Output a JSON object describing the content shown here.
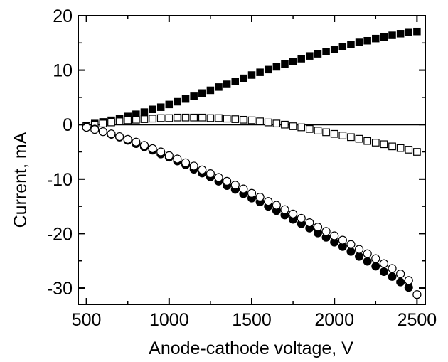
{
  "chart_data": {
    "type": "scatter",
    "title": "",
    "xlabel": "Anode-cathode voltage, V",
    "ylabel": "Current, mA",
    "xlim": [
      450,
      2550
    ],
    "ylim": [
      -33,
      20
    ],
    "xticks": [
      500,
      1000,
      1500,
      2000,
      2500
    ],
    "xtick_labels": [
      "500",
      "1000",
      "1500",
      "2000",
      "2500"
    ],
    "yticks": [
      20,
      10,
      0,
      -10,
      -20,
      -30
    ],
    "ytick_labels": [
      "20",
      "10",
      "0",
      "-10",
      "-20",
      "-30"
    ],
    "grid": false,
    "legend": null,
    "zero_line": true,
    "series": [
      {
        "marker": "filled-square",
        "color": "#000000",
        "x": [
          500,
          550,
          600,
          650,
          700,
          750,
          800,
          850,
          900,
          950,
          1000,
          1050,
          1100,
          1150,
          1200,
          1250,
          1300,
          1350,
          1400,
          1450,
          1500,
          1550,
          1600,
          1650,
          1700,
          1750,
          1800,
          1850,
          1900,
          1950,
          2000,
          2050,
          2100,
          2150,
          2200,
          2250,
          2300,
          2350,
          2400,
          2450,
          2500
        ],
        "y": [
          -0.2,
          0.2,
          0.5,
          0.8,
          1.1,
          1.5,
          1.9,
          2.3,
          2.8,
          3.2,
          3.7,
          4.2,
          4.7,
          5.2,
          5.8,
          6.3,
          6.9,
          7.4,
          7.9,
          8.5,
          9.1,
          9.6,
          10.1,
          10.6,
          11.1,
          11.6,
          12.1,
          12.6,
          13.0,
          13.4,
          13.8,
          14.3,
          14.7,
          15.1,
          15.4,
          15.8,
          16.1,
          16.4,
          16.7,
          16.9,
          17.1
        ]
      },
      {
        "marker": "open-square",
        "color": "#000000",
        "x": [
          500,
          550,
          600,
          650,
          700,
          750,
          800,
          850,
          900,
          950,
          1000,
          1050,
          1100,
          1150,
          1200,
          1250,
          1300,
          1350,
          1400,
          1450,
          1500,
          1550,
          1600,
          1650,
          1700,
          1750,
          1800,
          1850,
          1900,
          1950,
          2000,
          2050,
          2100,
          2150,
          2200,
          2250,
          2300,
          2350,
          2400,
          2450,
          2500
        ],
        "y": [
          -0.3,
          0.0,
          0.2,
          0.4,
          0.6,
          0.8,
          0.9,
          1.0,
          1.1,
          1.2,
          1.2,
          1.3,
          1.3,
          1.3,
          1.3,
          1.2,
          1.2,
          1.1,
          1.0,
          0.9,
          0.8,
          0.6,
          0.4,
          0.2,
          0.0,
          -0.3,
          -0.5,
          -0.8,
          -1.1,
          -1.4,
          -1.7,
          -2.0,
          -2.3,
          -2.6,
          -3.0,
          -3.3,
          -3.6,
          -4.0,
          -4.3,
          -4.6,
          -5.0
        ]
      },
      {
        "marker": "filled-circle",
        "color": "#000000",
        "x": [
          500,
          550,
          600,
          650,
          700,
          750,
          800,
          850,
          900,
          950,
          1000,
          1050,
          1100,
          1150,
          1200,
          1250,
          1300,
          1350,
          1400,
          1450,
          1500,
          1550,
          1600,
          1650,
          1700,
          1750,
          1800,
          1850,
          1900,
          1950,
          2000,
          2050,
          2100,
          2150,
          2200,
          2250,
          2300,
          2350,
          2400,
          2450,
          2500
        ],
        "y": [
          -0.4,
          -0.8,
          -1.3,
          -1.8,
          -2.3,
          -2.9,
          -3.5,
          -4.1,
          -4.7,
          -5.4,
          -6.0,
          -6.7,
          -7.4,
          -8.2,
          -8.9,
          -9.6,
          -10.4,
          -11.2,
          -11.9,
          -12.7,
          -13.5,
          -14.2,
          -15.0,
          -15.8,
          -16.6,
          -17.4,
          -18.2,
          -19.0,
          -19.9,
          -20.7,
          -21.6,
          -22.4,
          -23.3,
          -24.2,
          -25.1,
          -26.0,
          -27.0,
          -27.9,
          -28.9,
          -29.9,
          -31.2
        ]
      },
      {
        "marker": "open-circle",
        "color": "#000000",
        "x": [
          500,
          550,
          600,
          650,
          700,
          750,
          800,
          850,
          900,
          950,
          1000,
          1050,
          1100,
          1150,
          1200,
          1250,
          1300,
          1350,
          1400,
          1450,
          1500,
          1550,
          1600,
          1650,
          1700,
          1750,
          1800,
          1850,
          1900,
          1950,
          2000,
          2050,
          2100,
          2150,
          2200,
          2250,
          2300,
          2350,
          2400,
          2450,
          2500
        ],
        "y": [
          -0.5,
          -0.9,
          -1.3,
          -1.7,
          -2.2,
          -2.7,
          -3.2,
          -3.8,
          -4.4,
          -5.0,
          -5.7,
          -6.3,
          -7.0,
          -7.6,
          -8.3,
          -9.0,
          -9.7,
          -10.4,
          -11.1,
          -11.8,
          -12.6,
          -13.3,
          -14.1,
          -14.8,
          -15.6,
          -16.4,
          -17.2,
          -18.0,
          -18.8,
          -19.6,
          -20.4,
          -21.2,
          -22.0,
          -22.9,
          -23.7,
          -24.6,
          -25.5,
          -26.4,
          -27.4,
          -28.6,
          -31.2
        ]
      }
    ]
  }
}
